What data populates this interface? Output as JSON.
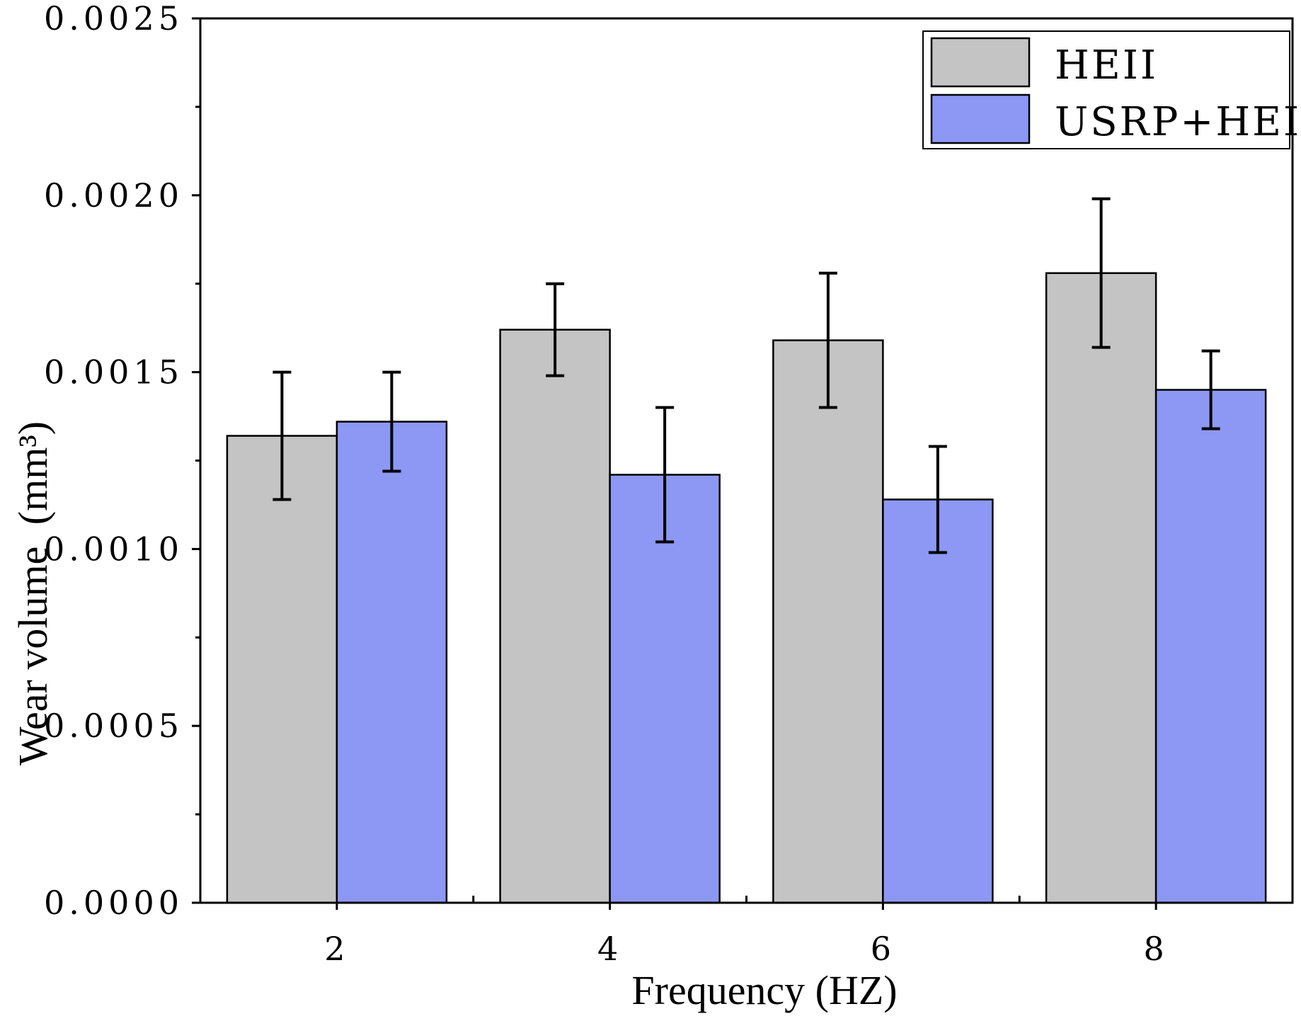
{
  "chart_data": {
    "type": "bar",
    "title": "",
    "xlabel": "Frequency (HZ)",
    "ylabel": "Wear volume",
    "ylabel_unit": "(mm³)",
    "categories": [
      "2",
      "4",
      "6",
      "8"
    ],
    "ylim": [
      0,
      0.0025
    ],
    "yticks": [
      "0.0000",
      "0.0005",
      "0.0010",
      "0.0015",
      "0.0020",
      "0.0025"
    ],
    "ytick_values": [
      0,
      0.0005,
      0.001,
      0.0015,
      0.002,
      0.0025
    ],
    "series": [
      {
        "name": "HEII",
        "color": "#c4c4c4",
        "values": [
          0.00132,
          0.00162,
          0.00159,
          0.00178
        ],
        "errors": [
          0.00018,
          0.00013,
          0.00019,
          0.00021
        ]
      },
      {
        "name": "USRP+HEII",
        "color": "#8c98f4",
        "values": [
          0.00136,
          0.00121,
          0.00114,
          0.00145
        ],
        "errors": [
          0.00014,
          0.00019,
          0.00015,
          0.00011
        ]
      }
    ],
    "legend_position": "top-right",
    "grid": false
  }
}
